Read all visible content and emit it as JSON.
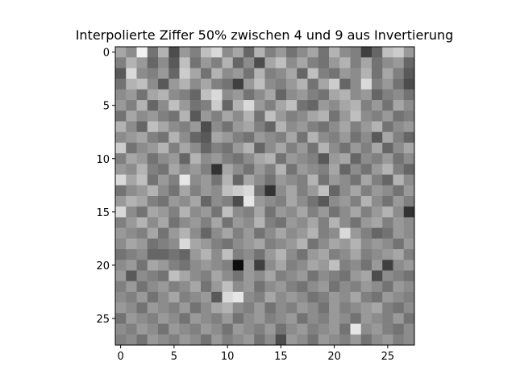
{
  "chart_data": {
    "type": "heatmap",
    "title": "Interpolierte Ziffer 50% zwischen 4 und 9 aus Invertierung",
    "colormap": "gray",
    "xlabel": "",
    "ylabel": "",
    "shape": [
      28,
      28
    ],
    "xlim": [
      -0.5,
      27.5
    ],
    "ylim": [
      27.5,
      -0.5
    ],
    "x_ticks": [
      0,
      5,
      10,
      15,
      20,
      25
    ],
    "y_ticks": [
      0,
      5,
      10,
      15,
      20,
      25
    ],
    "grid": false,
    "value_range": [
      0,
      1
    ],
    "values": [
      [
        0.65,
        0.55,
        0.95,
        0.45,
        0.7,
        0.3,
        0.6,
        0.5,
        0.75,
        0.85,
        0.55,
        0.65,
        0.4,
        0.7,
        0.5,
        0.6,
        0.45,
        0.55,
        0.65,
        0.45,
        0.7,
        0.55,
        0.5,
        0.25,
        0.4,
        0.75,
        0.8,
        0.6
      ],
      [
        0.5,
        0.7,
        0.6,
        0.4,
        0.55,
        0.35,
        0.75,
        0.45,
        0.6,
        0.5,
        0.7,
        0.4,
        0.55,
        0.3,
        0.65,
        0.75,
        0.55,
        0.65,
        0.5,
        0.45,
        0.6,
        0.7,
        0.5,
        0.65,
        0.45,
        0.55,
        0.6,
        0.4
      ],
      [
        0.35,
        0.85,
        0.55,
        0.5,
        0.6,
        0.4,
        0.8,
        0.65,
        0.45,
        0.7,
        0.55,
        0.6,
        0.45,
        0.7,
        0.5,
        0.55,
        0.65,
        0.4,
        0.75,
        0.5,
        0.45,
        0.6,
        0.55,
        0.7,
        0.45,
        0.65,
        0.5,
        0.35
      ],
      [
        0.45,
        0.7,
        0.75,
        0.55,
        0.35,
        0.6,
        0.7,
        0.55,
        0.65,
        0.5,
        0.45,
        0.25,
        0.6,
        0.75,
        0.55,
        0.5,
        0.6,
        0.7,
        0.45,
        0.65,
        0.8,
        0.4,
        0.55,
        0.85,
        0.5,
        0.6,
        0.45,
        0.3
      ],
      [
        0.55,
        0.6,
        0.45,
        0.65,
        0.7,
        0.55,
        0.5,
        0.4,
        0.75,
        0.85,
        0.55,
        0.6,
        0.45,
        0.55,
        0.65,
        0.4,
        0.55,
        0.6,
        0.5,
        0.45,
        0.65,
        0.7,
        0.55,
        0.6,
        0.4,
        0.5,
        0.55,
        0.45
      ],
      [
        0.6,
        0.5,
        0.7,
        0.4,
        0.55,
        0.75,
        0.6,
        0.45,
        0.5,
        0.8,
        0.4,
        0.7,
        0.85,
        0.6,
        0.5,
        0.65,
        0.75,
        0.45,
        0.4,
        0.6,
        0.55,
        0.65,
        0.7,
        0.5,
        0.6,
        0.45,
        0.65,
        0.55
      ],
      [
        0.45,
        0.65,
        0.55,
        0.6,
        0.5,
        0.45,
        0.7,
        0.35,
        0.6,
        0.5,
        0.65,
        0.55,
        0.7,
        0.45,
        0.75,
        0.6,
        0.5,
        0.55,
        0.65,
        0.7,
        0.45,
        0.6,
        0.75,
        0.55,
        0.5,
        0.6,
        0.45,
        0.5
      ],
      [
        0.7,
        0.55,
        0.4,
        0.75,
        0.65,
        0.55,
        0.5,
        0.6,
        0.3,
        0.55,
        0.45,
        0.6,
        0.65,
        0.5,
        0.4,
        0.7,
        0.55,
        0.6,
        0.5,
        0.45,
        0.55,
        0.65,
        0.5,
        0.6,
        0.7,
        0.45,
        0.55,
        0.6
      ],
      [
        0.55,
        0.6,
        0.65,
        0.5,
        0.45,
        0.7,
        0.55,
        0.4,
        0.35,
        0.65,
        0.6,
        0.5,
        0.45,
        0.6,
        0.55,
        0.5,
        0.65,
        0.45,
        0.7,
        0.55,
        0.5,
        0.6,
        0.45,
        0.55,
        0.35,
        0.65,
        0.5,
        0.4
      ],
      [
        0.8,
        0.45,
        0.55,
        0.6,
        0.7,
        0.5,
        0.65,
        0.55,
        0.4,
        0.5,
        0.45,
        0.6,
        0.7,
        0.4,
        0.55,
        0.65,
        0.5,
        0.6,
        0.45,
        0.7,
        0.55,
        0.45,
        0.6,
        0.5,
        0.65,
        0.4,
        0.55,
        0.65
      ],
      [
        0.5,
        0.65,
        0.6,
        0.45,
        0.55,
        0.6,
        0.4,
        0.7,
        0.55,
        0.6,
        0.5,
        0.45,
        0.55,
        0.65,
        0.7,
        0.45,
        0.6,
        0.55,
        0.5,
        0.35,
        0.6,
        0.65,
        0.4,
        0.55,
        0.5,
        0.6,
        0.45,
        0.55
      ],
      [
        0.6,
        0.55,
        0.7,
        0.5,
        0.45,
        0.65,
        0.55,
        0.6,
        0.5,
        0.2,
        0.65,
        0.55,
        0.45,
        0.6,
        0.5,
        0.7,
        0.45,
        0.6,
        0.55,
        0.5,
        0.65,
        0.4,
        0.55,
        0.45,
        0.6,
        0.7,
        0.5,
        0.4
      ],
      [
        0.85,
        0.65,
        0.75,
        0.45,
        0.6,
        0.5,
        0.9,
        0.55,
        0.6,
        0.45,
        0.7,
        0.4,
        0.65,
        0.55,
        0.45,
        0.6,
        0.55,
        0.5,
        0.7,
        0.45,
        0.6,
        0.55,
        0.45,
        0.65,
        0.5,
        0.4,
        0.7,
        0.55
      ],
      [
        0.45,
        0.55,
        0.6,
        0.7,
        0.55,
        0.45,
        0.65,
        0.5,
        0.6,
        0.55,
        0.75,
        0.8,
        0.85,
        0.45,
        0.2,
        0.55,
        0.65,
        0.5,
        0.6,
        0.75,
        0.4,
        0.55,
        0.65,
        0.5,
        0.6,
        0.55,
        0.45,
        0.6
      ],
      [
        0.6,
        0.7,
        0.65,
        0.5,
        0.45,
        0.6,
        0.55,
        0.65,
        0.4,
        0.55,
        0.5,
        0.3,
        0.9,
        0.6,
        0.55,
        0.5,
        0.65,
        0.55,
        0.45,
        0.35,
        0.55,
        0.6,
        0.5,
        0.7,
        0.55,
        0.45,
        0.6,
        0.5
      ],
      [
        0.85,
        0.55,
        0.45,
        0.65,
        0.6,
        0.5,
        0.7,
        0.55,
        0.6,
        0.45,
        0.75,
        0.55,
        0.5,
        0.65,
        0.45,
        0.6,
        0.55,
        0.65,
        0.5,
        0.6,
        0.45,
        0.55,
        0.65,
        0.5,
        0.6,
        0.7,
        0.55,
        0.2
      ],
      [
        0.5,
        0.6,
        0.7,
        0.55,
        0.65,
        0.45,
        0.55,
        0.6,
        0.5,
        0.65,
        0.45,
        0.6,
        0.55,
        0.7,
        0.5,
        0.45,
        0.6,
        0.55,
        0.65,
        0.5,
        0.7,
        0.55,
        0.45,
        0.6,
        0.65,
        0.5,
        0.6,
        0.55
      ],
      [
        0.6,
        0.55,
        0.5,
        0.65,
        0.45,
        0.6,
        0.7,
        0.55,
        0.4,
        0.55,
        0.65,
        0.5,
        0.6,
        0.45,
        0.55,
        0.65,
        0.55,
        0.6,
        0.7,
        0.5,
        0.55,
        0.85,
        0.6,
        0.5,
        0.4,
        0.45,
        0.6,
        0.55
      ],
      [
        0.55,
        0.65,
        0.6,
        0.45,
        0.5,
        0.55,
        0.85,
        0.65,
        0.6,
        0.5,
        0.45,
        0.55,
        0.6,
        0.65,
        0.5,
        0.55,
        0.6,
        0.7,
        0.45,
        0.55,
        0.65,
        0.6,
        0.7,
        0.55,
        0.6,
        0.55,
        0.45,
        0.6
      ],
      [
        0.45,
        0.5,
        0.55,
        0.4,
        0.4,
        0.45,
        0.4,
        0.6,
        0.7,
        0.55,
        0.75,
        0.5,
        0.55,
        0.45,
        0.6,
        0.7,
        0.55,
        0.45,
        0.6,
        0.65,
        0.5,
        0.55,
        0.65,
        0.5,
        0.55,
        0.6,
        0.65,
        0.5
      ],
      [
        0.55,
        0.6,
        0.45,
        0.65,
        0.6,
        0.5,
        0.45,
        0.55,
        0.6,
        0.55,
        0.5,
        0.05,
        0.6,
        0.25,
        0.55,
        0.65,
        0.5,
        0.55,
        0.65,
        0.6,
        0.75,
        0.5,
        0.55,
        0.45,
        0.6,
        0.25,
        0.55,
        0.6
      ],
      [
        0.6,
        0.35,
        0.55,
        0.5,
        0.45,
        0.75,
        0.65,
        0.55,
        0.5,
        0.65,
        0.55,
        0.45,
        0.6,
        0.55,
        0.65,
        0.5,
        0.55,
        0.6,
        0.45,
        0.55,
        0.5,
        0.45,
        0.6,
        0.65,
        0.3,
        0.55,
        0.5,
        0.45
      ],
      [
        0.5,
        0.6,
        0.45,
        0.55,
        0.6,
        0.5,
        0.55,
        0.65,
        0.45,
        0.6,
        0.75,
        0.55,
        0.6,
        0.45,
        0.55,
        0.6,
        0.5,
        0.45,
        0.55,
        0.6,
        0.45,
        0.55,
        0.5,
        0.6,
        0.55,
        0.45,
        0.6,
        0.55
      ],
      [
        0.55,
        0.5,
        0.6,
        0.45,
        0.55,
        0.65,
        0.5,
        0.55,
        0.6,
        0.35,
        0.85,
        0.9,
        0.55,
        0.5,
        0.65,
        0.55,
        0.6,
        0.55,
        0.45,
        0.5,
        0.6,
        0.55,
        0.65,
        0.5,
        0.45,
        0.6,
        0.55,
        0.5
      ],
      [
        0.6,
        0.55,
        0.45,
        0.6,
        0.55,
        0.5,
        0.6,
        0.45,
        0.55,
        0.65,
        0.7,
        0.55,
        0.5,
        0.6,
        0.45,
        0.55,
        0.5,
        0.6,
        0.55,
        0.45,
        0.6,
        0.5,
        0.55,
        0.6,
        0.65,
        0.5,
        0.45,
        0.55
      ],
      [
        0.45,
        0.6,
        0.55,
        0.5,
        0.6,
        0.55,
        0.45,
        0.6,
        0.55,
        0.5,
        0.6,
        0.45,
        0.55,
        0.6,
        0.5,
        0.55,
        0.6,
        0.45,
        0.55,
        0.5,
        0.6,
        0.55,
        0.45,
        0.6,
        0.55,
        0.5,
        0.6,
        0.45
      ],
      [
        0.55,
        0.5,
        0.6,
        0.55,
        0.45,
        0.6,
        0.55,
        0.5,
        0.6,
        0.55,
        0.45,
        0.6,
        0.55,
        0.5,
        0.6,
        0.45,
        0.55,
        0.6,
        0.5,
        0.55,
        0.6,
        0.45,
        0.9,
        0.55,
        0.6,
        0.5,
        0.45,
        0.55
      ],
      [
        0.5,
        0.55,
        0.45,
        0.6,
        0.55,
        0.5,
        0.6,
        0.55,
        0.45,
        0.6,
        0.5,
        0.55,
        0.6,
        0.45,
        0.55,
        0.3,
        0.6,
        0.55,
        0.45,
        0.6,
        0.55,
        0.5,
        0.6,
        0.45,
        0.55,
        0.6,
        0.5,
        0.55
      ]
    ]
  }
}
